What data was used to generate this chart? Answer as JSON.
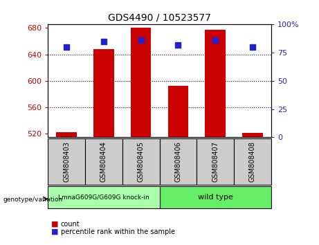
{
  "title": "GDS4490 / 10523577",
  "samples": [
    "GSM808403",
    "GSM808404",
    "GSM808405",
    "GSM808406",
    "GSM808407",
    "GSM808408"
  ],
  "counts": [
    523,
    648,
    680,
    592,
    677,
    521
  ],
  "percentile_ranks": [
    80,
    85,
    86,
    82,
    86,
    80
  ],
  "ymin": 515,
  "ymax": 685,
  "yticks_left": [
    520,
    560,
    600,
    640,
    680
  ],
  "yticks_right": [
    0,
    25,
    50,
    75,
    100
  ],
  "bar_color": "#cc0000",
  "dot_color": "#2222cc",
  "groups": [
    {
      "label": "LmnaG609G/G609G knock-in",
      "indices": [
        0,
        1,
        2
      ],
      "color": "#aaffaa"
    },
    {
      "label": "wild type",
      "indices": [
        3,
        4,
        5
      ],
      "color": "#66ee66"
    }
  ],
  "left_tick_color": "#cc0000",
  "right_tick_color": "#2222cc",
  "fig_width": 4.61,
  "fig_height": 3.54,
  "dpi": 100,
  "bar_width": 0.55,
  "dot_size": 30,
  "sample_box_color": "#cccccc"
}
